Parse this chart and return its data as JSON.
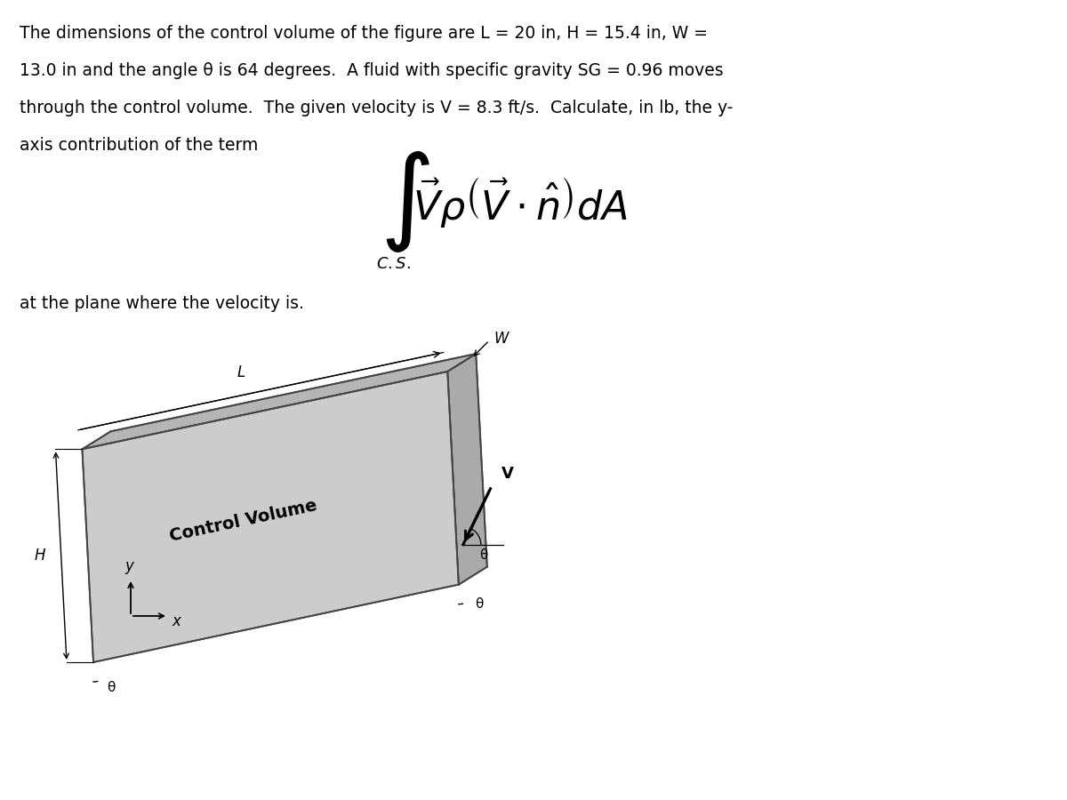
{
  "background_color": "#ffffff",
  "paragraph_lines": [
    "The dimensions of the control volume of the figure are L = 20 in, H = 15.4 in, W =",
    "13.0 in and the angle θ is 64 degrees.  A fluid with specific gravity SG = 0.96 moves",
    "through the control volume.  The given velocity is V = 8.3 ft/s.  Calculate, in lb, the y-",
    "axis contribution of the term"
  ],
  "subtext": "at the plane where the velocity is.",
  "cv_label": "Control Volume",
  "L_label": "L",
  "H_label": "H",
  "W_label": "W",
  "V_label": "V",
  "theta_label": "θ",
  "y_label": "y",
  "x_label": "x",
  "face_color": "#cccccc",
  "top_color": "#b5b5b5",
  "right_color": "#aaaaaa",
  "edge_color": "#444444",
  "text_color": "#000000",
  "para_fontsize": 13.5,
  "formula_fontsize": 32,
  "integral_fontsize": 60,
  "subtext_fontsize": 13.5
}
